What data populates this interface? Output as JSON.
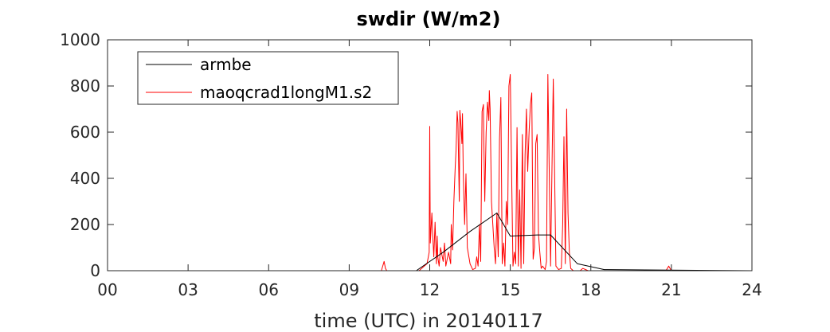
{
  "chart_data": {
    "type": "line",
    "title": "swdir  (W/m2)",
    "xlabel": "time (UTC) in 20140117",
    "ylabel": "",
    "xlim": [
      0,
      24
    ],
    "ylim": [
      0,
      1000
    ],
    "xticks": [
      0,
      3,
      6,
      9,
      12,
      15,
      18,
      21,
      24
    ],
    "xtick_labels": [
      "00",
      "03",
      "06",
      "09",
      "12",
      "15",
      "18",
      "21",
      "24"
    ],
    "yticks": [
      0,
      200,
      400,
      600,
      800,
      1000
    ],
    "ytick_labels": [
      "0",
      "200",
      "400",
      "600",
      "800",
      "1000"
    ],
    "grid": false,
    "legend_position": "top-left",
    "series": [
      {
        "name": "armbe",
        "color": "#000000",
        "x": [
          0,
          11.5,
          12.5,
          13.5,
          14.5,
          15.0,
          16.0,
          16.5,
          17.5,
          18.5,
          24
        ],
        "y": [
          0,
          0,
          80,
          170,
          250,
          150,
          155,
          155,
          30,
          5,
          0
        ]
      },
      {
        "name": "maoqcrad1longM1.s2",
        "color": "#ff0000",
        "x": [
          0,
          10.2,
          10.3,
          10.35,
          10.4,
          11.6,
          11.9,
          11.98,
          12.0,
          12.02,
          12.08,
          12.1,
          12.15,
          12.2,
          12.25,
          12.28,
          12.3,
          12.35,
          12.4,
          12.5,
          12.55,
          12.6,
          12.7,
          12.78,
          12.8,
          12.85,
          12.9,
          12.95,
          12.98,
          13.0,
          13.02,
          13.05,
          13.1,
          13.12,
          13.15,
          13.2,
          13.22,
          13.25,
          13.3,
          13.35,
          13.4,
          13.5,
          13.6,
          13.7,
          13.75,
          13.8,
          13.85,
          13.9,
          13.95,
          14.0,
          14.02,
          14.05,
          14.1,
          14.15,
          14.2,
          14.22,
          14.25,
          14.3,
          14.35,
          14.4,
          14.45,
          14.5,
          14.55,
          14.6,
          14.65,
          14.7,
          14.75,
          14.8,
          14.85,
          14.9,
          14.95,
          15.0,
          15.05,
          15.1,
          15.15,
          15.2,
          15.25,
          15.3,
          15.35,
          15.4,
          15.45,
          15.5,
          15.55,
          15.6,
          15.65,
          15.7,
          15.75,
          15.8,
          15.85,
          15.9,
          15.95,
          16.0,
          16.05,
          16.1,
          16.15,
          16.2,
          16.3,
          16.35,
          16.4,
          16.5,
          16.6,
          16.7,
          16.8,
          16.9,
          16.95,
          17.0,
          17.05,
          17.1,
          17.15,
          17.2,
          17.25,
          17.35,
          17.6,
          17.7,
          17.9,
          18.0,
          20.8,
          20.9,
          20.95,
          21.0,
          24
        ],
        "y": [
          0,
          0,
          40,
          10,
          0,
          0,
          30,
          80,
          625,
          120,
          250,
          180,
          60,
          210,
          30,
          150,
          60,
          20,
          100,
          40,
          120,
          20,
          80,
          30,
          200,
          90,
          300,
          450,
          520,
          600,
          690,
          640,
          300,
          695,
          650,
          550,
          680,
          420,
          200,
          420,
          100,
          30,
          5,
          10,
          60,
          20,
          200,
          40,
          690,
          720,
          520,
          300,
          600,
          730,
          650,
          780,
          700,
          300,
          200,
          100,
          30,
          250,
          60,
          570,
          750,
          30,
          120,
          20,
          300,
          200,
          800,
          850,
          420,
          20,
          80,
          30,
          620,
          20,
          350,
          10,
          590,
          30,
          500,
          700,
          430,
          600,
          720,
          770,
          50,
          100,
          550,
          590,
          160,
          80,
          10,
          20,
          5,
          40,
          850,
          20,
          830,
          20,
          5,
          10,
          200,
          580,
          30,
          700,
          250,
          80,
          10,
          0,
          0,
          10,
          0,
          0,
          0,
          20,
          10,
          0,
          0
        ]
      }
    ]
  }
}
